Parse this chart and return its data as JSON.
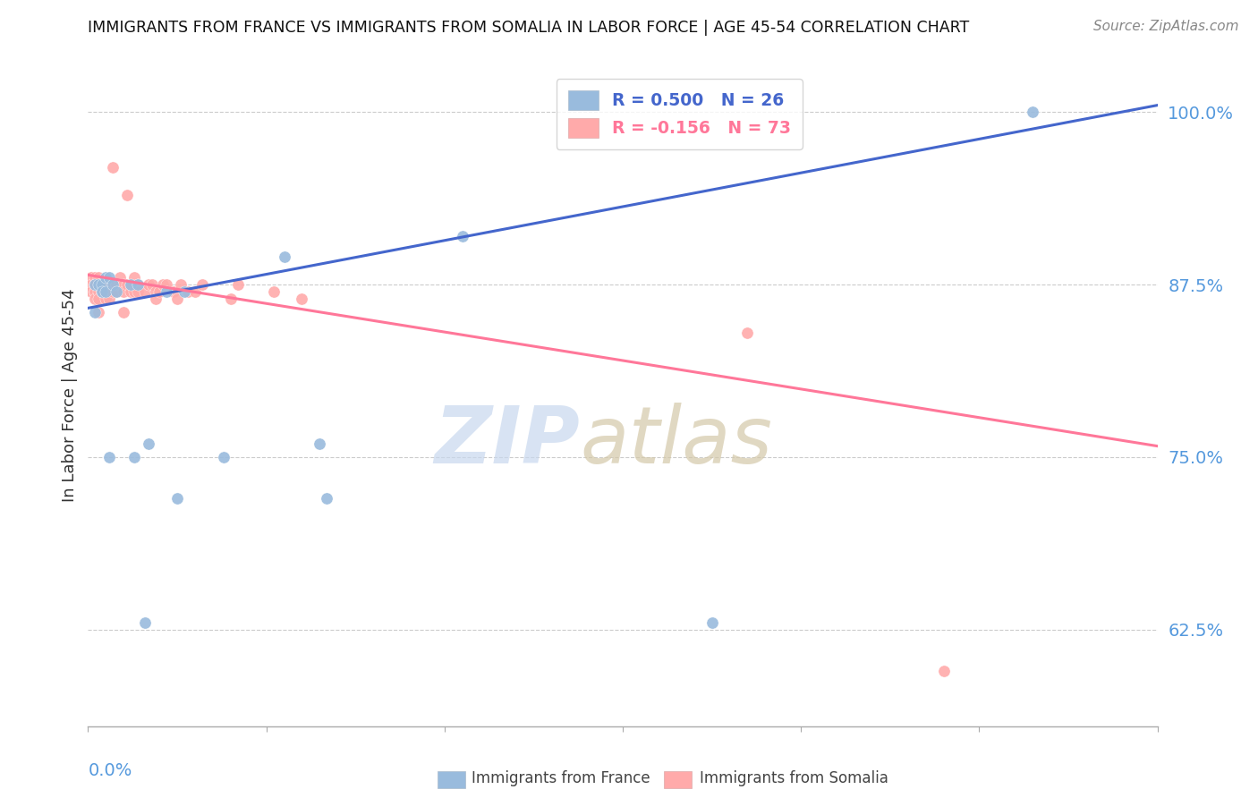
{
  "title": "IMMIGRANTS FROM FRANCE VS IMMIGRANTS FROM SOMALIA IN LABOR FORCE | AGE 45-54 CORRELATION CHART",
  "source": "Source: ZipAtlas.com",
  "ylabel": "In Labor Force | Age 45-54",
  "legend_france": "R = 0.500   N = 26",
  "legend_somalia": "R = -0.156   N = 73",
  "france_color": "#99BBDD",
  "somalia_color": "#FFAAAA",
  "france_line_color": "#4466CC",
  "somalia_line_color": "#FF7799",
  "xlim": [
    0.0,
    0.3
  ],
  "ylim": [
    0.555,
    1.035
  ],
  "ytick_values": [
    0.625,
    0.75,
    0.875,
    1.0
  ],
  "ytick_labels": [
    "62.5%",
    "75.0%",
    "87.5%",
    "100.0%"
  ],
  "tick_color": "#5599DD",
  "france_line_x": [
    0.0,
    0.3
  ],
  "france_line_y": [
    0.858,
    1.005
  ],
  "somalia_line_x": [
    0.0,
    0.3
  ],
  "somalia_line_y": [
    0.882,
    0.758
  ],
  "france_points_x": [
    0.002,
    0.002,
    0.003,
    0.004,
    0.004,
    0.005,
    0.005,
    0.006,
    0.006,
    0.007,
    0.008,
    0.012,
    0.013,
    0.014,
    0.016,
    0.017,
    0.022,
    0.025,
    0.027,
    0.038,
    0.055,
    0.065,
    0.067,
    0.105,
    0.175,
    0.265
  ],
  "france_points_y": [
    0.855,
    0.875,
    0.875,
    0.875,
    0.87,
    0.88,
    0.87,
    0.88,
    0.75,
    0.875,
    0.87,
    0.875,
    0.75,
    0.875,
    0.63,
    0.76,
    0.87,
    0.72,
    0.87,
    0.75,
    0.895,
    0.76,
    0.72,
    0.91,
    0.63,
    1.0
  ],
  "somalia_points_x": [
    0.001,
    0.001,
    0.001,
    0.001,
    0.002,
    0.002,
    0.002,
    0.002,
    0.002,
    0.002,
    0.002,
    0.003,
    0.003,
    0.003,
    0.003,
    0.003,
    0.003,
    0.003,
    0.003,
    0.004,
    0.004,
    0.004,
    0.004,
    0.004,
    0.004,
    0.005,
    0.005,
    0.005,
    0.005,
    0.005,
    0.006,
    0.006,
    0.006,
    0.006,
    0.007,
    0.007,
    0.007,
    0.008,
    0.008,
    0.008,
    0.009,
    0.009,
    0.01,
    0.01,
    0.01,
    0.011,
    0.011,
    0.012,
    0.012,
    0.013,
    0.013,
    0.014,
    0.014,
    0.016,
    0.017,
    0.018,
    0.019,
    0.019,
    0.02,
    0.021,
    0.022,
    0.024,
    0.025,
    0.026,
    0.028,
    0.03,
    0.032,
    0.04,
    0.042,
    0.052,
    0.06,
    0.185,
    0.24
  ],
  "somalia_points_y": [
    0.88,
    0.88,
    0.875,
    0.87,
    0.875,
    0.88,
    0.875,
    0.87,
    0.875,
    0.87,
    0.865,
    0.87,
    0.875,
    0.875,
    0.875,
    0.88,
    0.875,
    0.865,
    0.855,
    0.875,
    0.875,
    0.87,
    0.875,
    0.875,
    0.87,
    0.875,
    0.875,
    0.87,
    0.87,
    0.865,
    0.875,
    0.875,
    0.87,
    0.865,
    0.96,
    0.875,
    0.87,
    0.875,
    0.87,
    0.875,
    0.88,
    0.875,
    0.875,
    0.87,
    0.855,
    0.875,
    0.94,
    0.87,
    0.875,
    0.87,
    0.88,
    0.875,
    0.87,
    0.87,
    0.875,
    0.875,
    0.87,
    0.865,
    0.87,
    0.875,
    0.875,
    0.87,
    0.865,
    0.875,
    0.87,
    0.87,
    0.875,
    0.865,
    0.875,
    0.87,
    0.865,
    0.84,
    0.595
  ]
}
